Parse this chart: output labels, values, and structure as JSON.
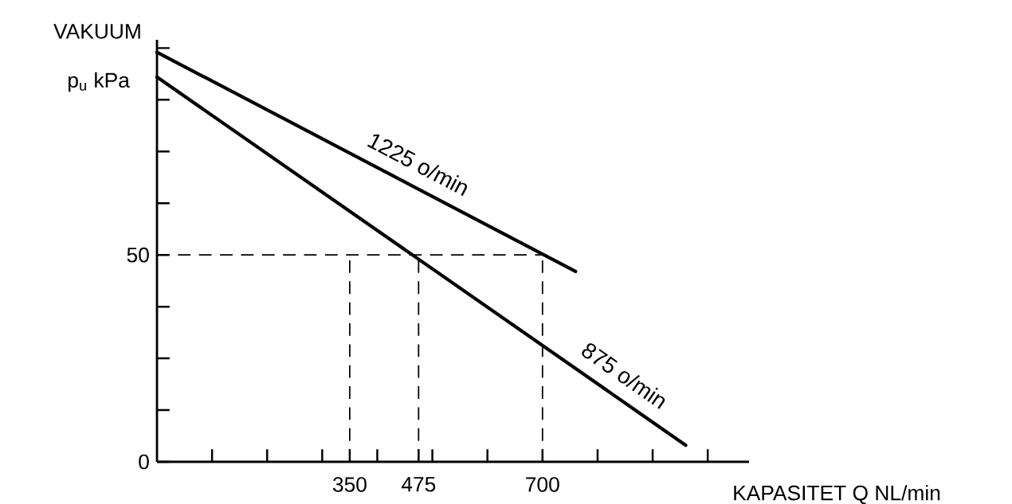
{
  "chart_data": {
    "type": "line",
    "title": "VAKUUM",
    "ylabel": "p$_{u}$ kPa",
    "xlabel": "KAPASITET Q NL/min",
    "xlim": [
      0,
      1075
    ],
    "ylim": [
      0,
      102
    ],
    "xticks": [
      {
        "value": 100,
        "label": null
      },
      {
        "value": 200,
        "label": null
      },
      {
        "value": 300,
        "label": null
      },
      350,
      {
        "value": 400,
        "label": null
      },
      475,
      {
        "value": 500,
        "label": null
      },
      {
        "value": 600,
        "label": null
      },
      700,
      {
        "value": 800,
        "label": null
      },
      {
        "value": 900,
        "label": null
      },
      {
        "value": 1000,
        "label": null
      }
    ],
    "yticks": [
      0,
      {
        "value": 12.5,
        "label": null
      },
      {
        "value": 25,
        "label": null
      },
      {
        "value": 37.5,
        "label": null
      },
      50,
      {
        "value": 62.5,
        "label": null
      },
      {
        "value": 75,
        "label": null
      },
      {
        "value": 87.5,
        "label": null
      },
      {
        "value": 100,
        "label": null
      }
    ],
    "marker": "none",
    "line_style": "solid",
    "grid": false,
    "ref_lines": [
      {
        "axis": "y",
        "value": 50,
        "line_style": "dashed",
        "color": "#000000"
      },
      {
        "axis": "x",
        "value": 350,
        "line_style": "dashed",
        "color": "#000000"
      },
      {
        "axis": "x",
        "value": 475,
        "line_style": "dashed",
        "color": "#000000"
      },
      {
        "axis": "x",
        "value": 700,
        "line_style": "dashed",
        "color": "#000000"
      }
    ],
    "series": [
      {
        "name": "1225 o/min",
        "color": "#000000",
        "x": [
          0,
          760
        ],
        "values": [
          99,
          46
        ]
      },
      {
        "name": "875 o/min",
        "color": "#000000",
        "x": [
          0,
          960
        ],
        "values": [
          93,
          4
        ]
      }
    ]
  }
}
